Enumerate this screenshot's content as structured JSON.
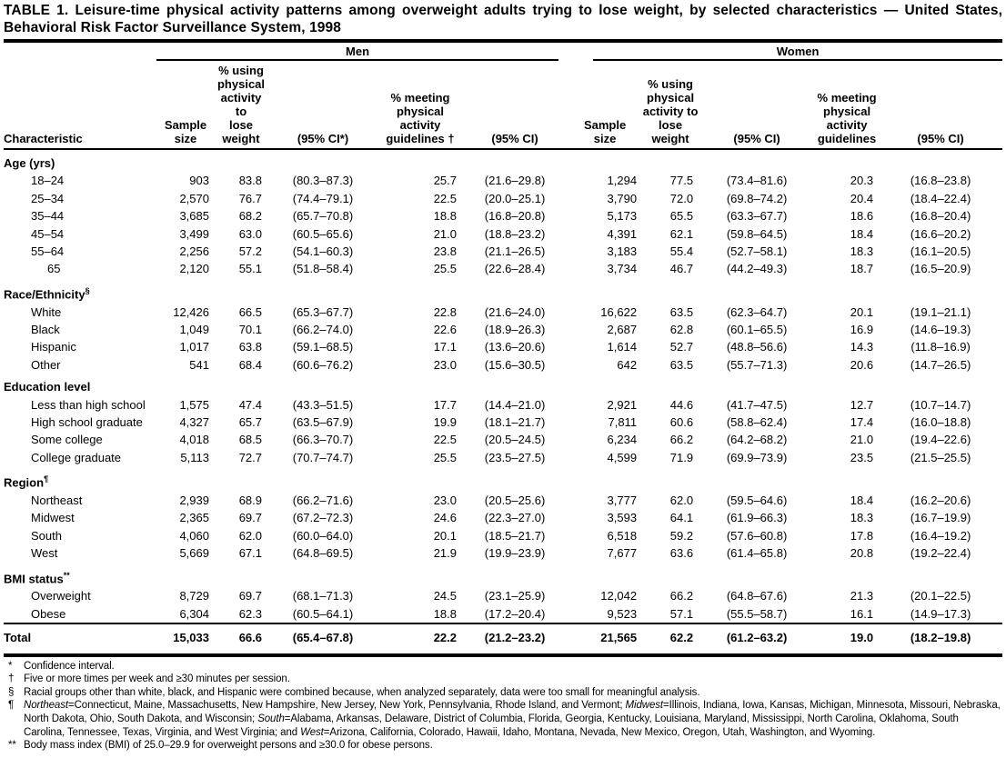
{
  "title": "TABLE 1. Leisure-time physical activity patterns among overweight adults trying to lose weight, by selected characteristics — United States, Behavioral Risk Factor Surveillance System, 1998",
  "table": {
    "group_headers": {
      "men": "Men",
      "women": "Women"
    },
    "col_headers": {
      "characteristic": "Characteristic",
      "men": [
        "Sample\nsize",
        "% using\nphysical\nactivity to\nlose weight",
        "(95% CI*)",
        "% meeting\nphysical\nactivity\nguidelines †",
        "(95% CI)"
      ],
      "women": [
        "Sample\nsize",
        "% using\nphysical\nactivity to\nlose weight",
        "(95% CI)",
        "% meeting\nphysical\nactivity\nguidelines",
        "(95% CI)"
      ]
    },
    "sections": [
      {
        "label": "Age (yrs)",
        "marker": "",
        "rows": [
          {
            "label": "18–24",
            "indent": 1,
            "values": [
              "903",
              "83.8",
              "(80.3–87.3)",
              "25.7",
              "(21.6–29.8)",
              "1,294",
              "77.5",
              "(73.4–81.6)",
              "20.3",
              "(16.8–23.8)"
            ]
          },
          {
            "label": "25–34",
            "indent": 1,
            "values": [
              "2,570",
              "76.7",
              "(74.4–79.1)",
              "22.5",
              "(20.0–25.1)",
              "3,790",
              "72.0",
              "(69.8–74.2)",
              "20.4",
              "(18.4–22.4)"
            ]
          },
          {
            "label": "35–44",
            "indent": 1,
            "values": [
              "3,685",
              "68.2",
              "(65.7–70.8)",
              "18.8",
              "(16.8–20.8)",
              "5,173",
              "65.5",
              "(63.3–67.7)",
              "18.6",
              "(16.8–20.4)"
            ]
          },
          {
            "label": "45–54",
            "indent": 1,
            "values": [
              "3,499",
              "63.0",
              "(60.5–65.6)",
              "21.0",
              "(18.8–23.2)",
              "4,391",
              "62.1",
              "(59.8–64.5)",
              "18.4",
              "(16.6–20.2)"
            ]
          },
          {
            "label": "55–64",
            "indent": 1,
            "values": [
              "2,256",
              "57.2",
              "(54.1–60.3)",
              "23.8",
              "(21.1–26.5)",
              "3,183",
              "55.4",
              "(52.7–58.1)",
              "18.3",
              "(16.1–20.5)"
            ]
          },
          {
            "label": "65",
            "indent": 2,
            "values": [
              "2,120",
              "55.1",
              "(51.8–58.4)",
              "25.5",
              "(22.6–28.4)",
              "3,734",
              "46.7",
              "(44.2–49.3)",
              "18.7",
              "(16.5–20.9)"
            ]
          }
        ]
      },
      {
        "label": "Race/Ethnicity",
        "marker": "§",
        "rows": [
          {
            "label": "White",
            "indent": 1,
            "values": [
              "12,426",
              "66.5",
              "(65.3–67.7)",
              "22.8",
              "(21.6–24.0)",
              "16,622",
              "63.5",
              "(62.3–64.7)",
              "20.1",
              "(19.1–21.1)"
            ]
          },
          {
            "label": "Black",
            "indent": 1,
            "values": [
              "1,049",
              "70.1",
              "(66.2–74.0)",
              "22.6",
              "(18.9–26.3)",
              "2,687",
              "62.8",
              "(60.1–65.5)",
              "16.9",
              "(14.6–19.3)"
            ]
          },
          {
            "label": "Hispanic",
            "indent": 1,
            "values": [
              "1,017",
              "63.8",
              "(59.1–68.5)",
              "17.1",
              "(13.6–20.6)",
              "1,614",
              "52.7",
              "(48.8–56.6)",
              "14.3",
              "(11.8–16.9)"
            ]
          },
          {
            "label": "Other",
            "indent": 1,
            "values": [
              "541",
              "68.4",
              "(60.6–76.2)",
              "23.0",
              "(15.6–30.5)",
              "642",
              "63.5",
              "(55.7–71.3)",
              "20.6",
              "(14.7–26.5)"
            ]
          }
        ]
      },
      {
        "label": "Education level",
        "marker": "",
        "rows": [
          {
            "label": "Less than high school",
            "indent": 1,
            "values": [
              "1,575",
              "47.4",
              "(43.3–51.5)",
              "17.7",
              "(14.4–21.0)",
              "2,921",
              "44.6",
              "(41.7–47.5)",
              "12.7",
              "(10.7–14.7)"
            ]
          },
          {
            "label": "High school graduate",
            "indent": 1,
            "values": [
              "4,327",
              "65.7",
              "(63.5–67.9)",
              "19.9",
              "(18.1–21.7)",
              "7,811",
              "60.6",
              "(58.8–62.4)",
              "17.4",
              "(16.0–18.8)"
            ]
          },
          {
            "label": "Some college",
            "indent": 1,
            "values": [
              "4,018",
              "68.5",
              "(66.3–70.7)",
              "22.5",
              "(20.5–24.5)",
              "6,234",
              "66.2",
              "(64.2–68.2)",
              "21.0",
              "(19.4–22.6)"
            ]
          },
          {
            "label": "College graduate",
            "indent": 1,
            "values": [
              "5,113",
              "72.7",
              "(70.7–74.7)",
              "25.5",
              "(23.5–27.5)",
              "4,599",
              "71.9",
              "(69.9–73.9)",
              "23.5",
              "(21.5–25.5)"
            ]
          }
        ]
      },
      {
        "label": "Region",
        "marker": "¶",
        "rows": [
          {
            "label": "Northeast",
            "indent": 1,
            "values": [
              "2,939",
              "68.9",
              "(66.2–71.6)",
              "23.0",
              "(20.5–25.6)",
              "3,777",
              "62.0",
              "(59.5–64.6)",
              "18.4",
              "(16.2–20.6)"
            ]
          },
          {
            "label": "Midwest",
            "indent": 1,
            "values": [
              "2,365",
              "69.7",
              "(67.2–72.3)",
              "24.6",
              "(22.3–27.0)",
              "3,593",
              "64.1",
              "(61.9–66.3)",
              "18.3",
              "(16.7–19.9)"
            ]
          },
          {
            "label": "South",
            "indent": 1,
            "values": [
              "4,060",
              "62.0",
              "(60.0–64.0)",
              "20.1",
              "(18.5–21.7)",
              "6,518",
              "59.2",
              "(57.6–60.8)",
              "17.8",
              "(16.4–19.2)"
            ]
          },
          {
            "label": "West",
            "indent": 1,
            "values": [
              "5,669",
              "67.1",
              "(64.8–69.5)",
              "21.9",
              "(19.9–23.9)",
              "7,677",
              "63.6",
              "(61.4–65.8)",
              "20.8",
              "(19.2–22.4)"
            ]
          }
        ]
      },
      {
        "label": "BMI status",
        "marker": "**",
        "rows": [
          {
            "label": "Overweight",
            "indent": 1,
            "values": [
              "8,729",
              "69.7",
              "(68.1–71.3)",
              "24.5",
              "(23.1–25.9)",
              "12,042",
              "66.2",
              "(64.8–67.6)",
              "21.3",
              "(20.1–22.5)"
            ]
          },
          {
            "label": "Obese",
            "indent": 1,
            "values": [
              "6,304",
              "62.3",
              "(60.5–64.1)",
              "18.8",
              "(17.2–20.4)",
              "9,523",
              "57.1",
              "(55.5–58.7)",
              "16.1",
              "(14.9–17.3)"
            ]
          }
        ]
      }
    ],
    "total": {
      "label": "Total",
      "values": [
        "15,033",
        "66.6",
        "(65.4–67.8)",
        "22.2",
        "(21.2–23.2)",
        "21,565",
        "62.2",
        "(61.2–63.2)",
        "19.0",
        "(18.2–19.8)"
      ]
    }
  },
  "footnotes": [
    {
      "marker": "*",
      "segments": [
        {
          "t": "Confidence interval."
        }
      ]
    },
    {
      "marker": "†",
      "segments": [
        {
          "t": "Five or more times per week and ≥30 minutes per session."
        }
      ]
    },
    {
      "marker": "§",
      "segments": [
        {
          "t": "Racial groups other than white, black, and Hispanic were combined because, when analyzed separately, data were too small for meaningful analysis."
        }
      ]
    },
    {
      "marker": "¶",
      "segments": [
        {
          "t": "Northeast",
          "i": true
        },
        {
          "t": "=Connecticut, Maine, Massachusetts, New Hampshire, New Jersey, New York, Pennsylvania, Rhode Island, and Vermont; "
        },
        {
          "t": "Midwest",
          "i": true
        },
        {
          "t": "=Illinois, Indiana, Iowa, Kansas, Michigan, Minnesota, Missouri, Nebraska, North Dakota, Ohio, South Dakota, and Wisconsin; "
        },
        {
          "t": "South",
          "i": true
        },
        {
          "t": "=Alabama, Arkansas, Delaware, District of Columbia, Florida, Georgia, Kentucky, Louisiana, Maryland, Mississippi, North Carolina, Oklahoma, South Carolina, Tennessee, Texas, Virginia, and West Virginia; and "
        },
        {
          "t": "West",
          "i": true
        },
        {
          "t": "=Arizona, California, Colorado, Hawaii, Idaho, Montana, Nevada, New Mexico, Oregon, Utah, Washington, and Wyoming."
        }
      ]
    },
    {
      "marker": "**",
      "segments": [
        {
          "t": "Body mass index (BMI) of 25.0–29.9 for overweight persons and ≥30.0 for obese persons."
        }
      ]
    }
  ]
}
